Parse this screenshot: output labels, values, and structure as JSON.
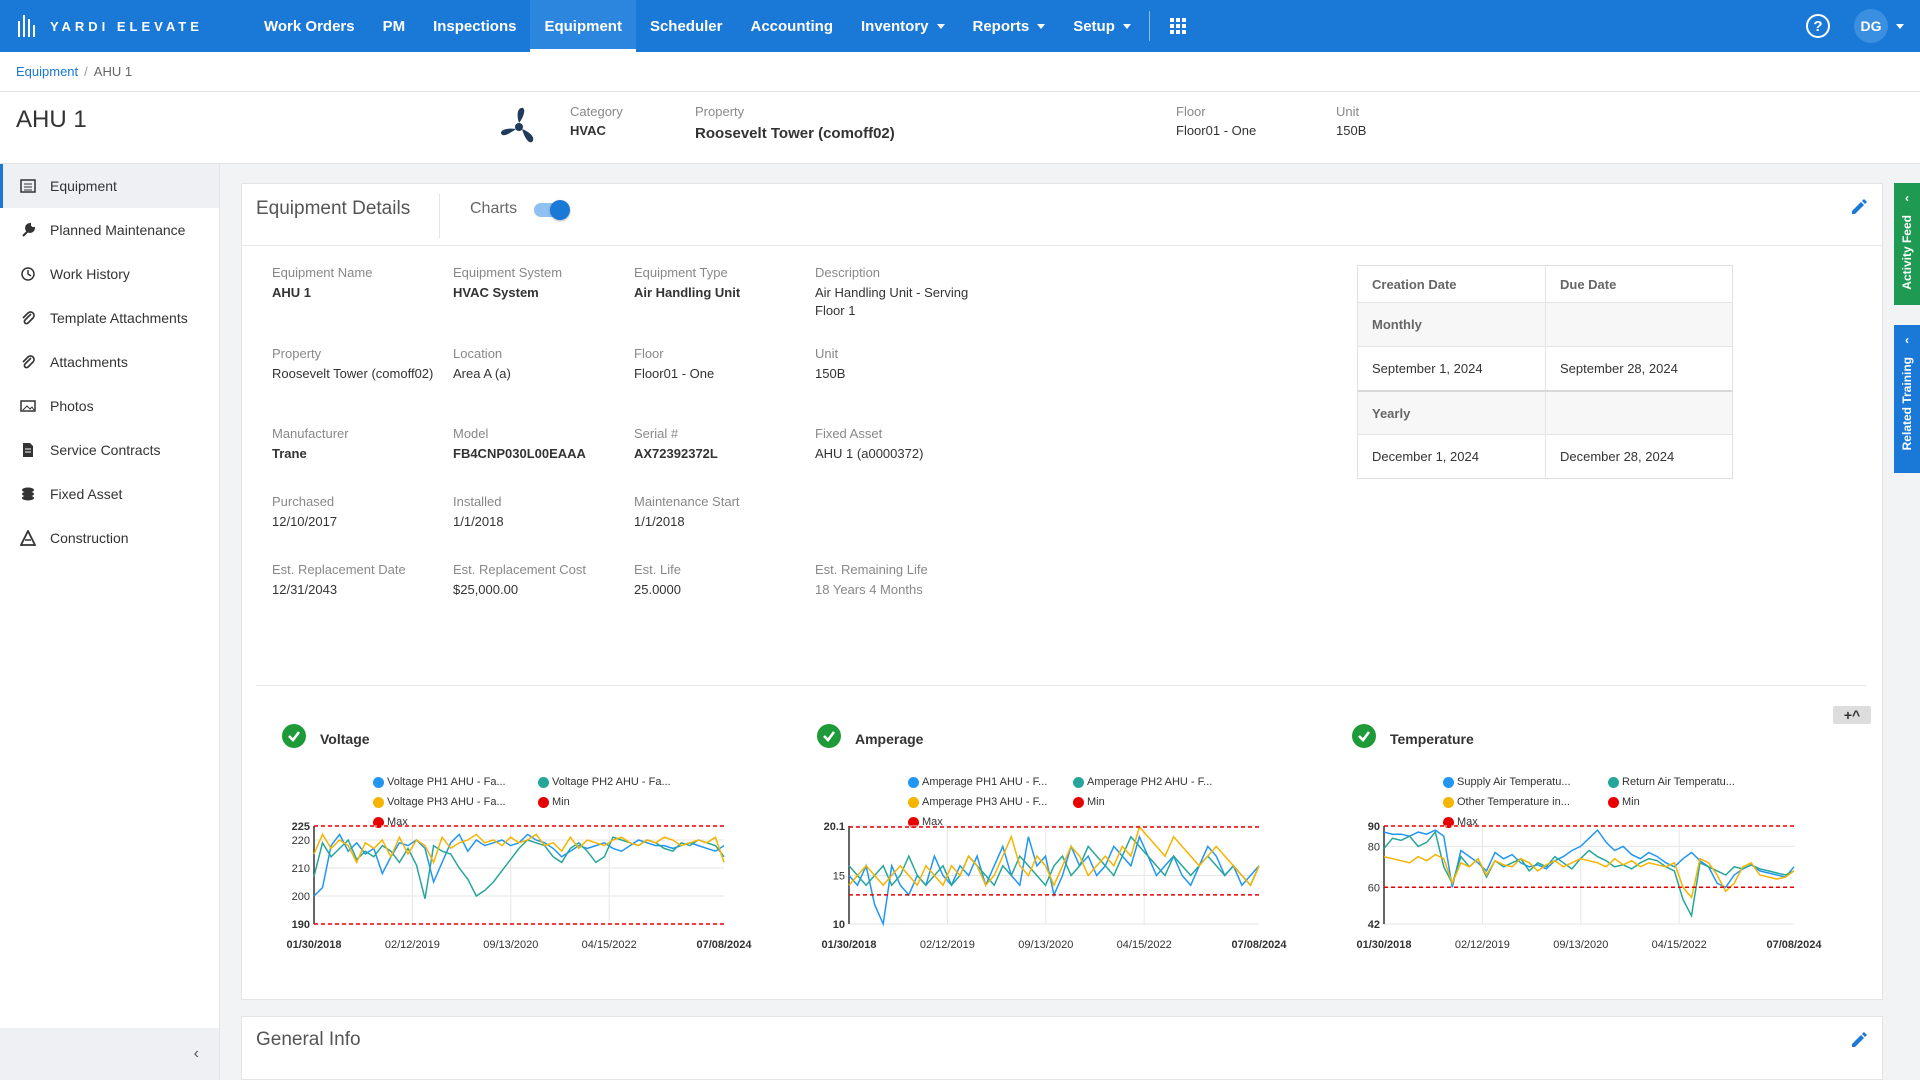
{
  "app": {
    "logo_text": "YARDI ELEVATE",
    "user_initials": "DG",
    "help_glyph": "?"
  },
  "nav": {
    "items": [
      {
        "label": "Work Orders",
        "dropdown": false
      },
      {
        "label": "PM",
        "dropdown": false
      },
      {
        "label": "Inspections",
        "dropdown": false
      },
      {
        "label": "Equipment",
        "dropdown": false,
        "active": true
      },
      {
        "label": "Scheduler",
        "dropdown": false
      },
      {
        "label": "Accounting",
        "dropdown": false
      },
      {
        "label": "Inventory",
        "dropdown": true
      },
      {
        "label": "Reports",
        "dropdown": true
      },
      {
        "label": "Setup",
        "dropdown": true
      }
    ]
  },
  "breadcrumb": {
    "root": "Equipment",
    "separator": "/",
    "current": "AHU 1"
  },
  "header": {
    "title": "AHU 1",
    "category_label": "Category",
    "category_value": "HVAC",
    "property_label": "Property",
    "property_value": "Roosevelt Tower (comoff02)",
    "floor_label": "Floor",
    "floor_value": "Floor01 - One",
    "unit_label": "Unit",
    "unit_value": "150B"
  },
  "sidebar": {
    "items": [
      {
        "label": "Equipment",
        "icon": "list-icon",
        "active": true
      },
      {
        "label": "Planned Maintenance",
        "icon": "wrench-icon"
      },
      {
        "label": "Work History",
        "icon": "history-icon"
      },
      {
        "label": "Template Attachments",
        "icon": "paperclip-icon"
      },
      {
        "label": "Attachments",
        "icon": "paperclip-icon"
      },
      {
        "label": "Photos",
        "icon": "image-icon"
      },
      {
        "label": "Service Contracts",
        "icon": "document-icon"
      },
      {
        "label": "Fixed Asset",
        "icon": "coins-icon"
      },
      {
        "label": "Construction",
        "icon": "cone-icon"
      }
    ],
    "collapse_glyph": "‹"
  },
  "details": {
    "title": "Equipment Details",
    "charts_label": "Charts",
    "charts_enabled": true,
    "fields": [
      {
        "label": "Equipment Name",
        "value": "AHU 1",
        "bold": true
      },
      {
        "label": "Equipment System",
        "value": "HVAC System",
        "bold": true
      },
      {
        "label": "Equipment Type",
        "value": "Air Handling Unit",
        "bold": true
      },
      {
        "label": "Description",
        "value": "Air Handling Unit - Serving Floor 1"
      },
      {
        "label": "Property",
        "value": "Roosevelt Tower (comoff02)"
      },
      {
        "label": "Location",
        "value": "Area A (a)"
      },
      {
        "label": "Floor",
        "value": "Floor01 - One"
      },
      {
        "label": "Unit",
        "value": "150B"
      },
      {
        "label": "Manufacturer",
        "value": "Trane",
        "bold": true
      },
      {
        "label": "Model",
        "value": "FB4CNP030L00EAAA",
        "bold": true
      },
      {
        "label": "Serial #",
        "value": "AX72392372L",
        "bold": true
      },
      {
        "label": "Fixed Asset",
        "value": "AHU 1 (a0000372)"
      },
      {
        "label": "Purchased",
        "value": "12/10/2017"
      },
      {
        "label": "Installed",
        "value": "1/1/2018"
      },
      {
        "label": "Maintenance Start",
        "value": "1/1/2018"
      },
      {
        "label": "Est. Replacement Date",
        "value": "12/31/2043"
      },
      {
        "label": "Est. Replacement Cost",
        "value": "$25,000.00"
      },
      {
        "label": "Est. Life",
        "value": "25.0000"
      },
      {
        "label": "Est. Remaining Life",
        "value": "18 Years 4 Months",
        "muted": true
      }
    ],
    "dates": {
      "headers": [
        "Creation Date",
        "Due Date"
      ],
      "groups": [
        {
          "name": "Monthly",
          "creation": "September 1, 2024",
          "due": "September 28, 2024"
        },
        {
          "name": "Yearly",
          "creation": "December 1, 2024",
          "due": "December 28, 2024"
        }
      ]
    },
    "expand_glyph": "+^"
  },
  "general_info": {
    "title": "General Info"
  },
  "right_tabs": {
    "activity": "Activity Feed",
    "training": "Related Training"
  },
  "colors": {
    "blue": "#2196f3",
    "green": "#26a69a",
    "yellow": "#f4b400",
    "red": "#e60000",
    "nav": "#1a78d6"
  },
  "chart_data": [
    {
      "type": "line",
      "title": "Voltage",
      "x_tick_labels": [
        "01/30/2018",
        "02/12/2019",
        "09/13/2020",
        "04/15/2022",
        "07/08/2024"
      ],
      "ylim": [
        190,
        225
      ],
      "y_tick_labels": [
        "225",
        "220",
        "210",
        "200",
        "190"
      ],
      "series": [
        {
          "name": "Voltage PH1 AHU - Fa...",
          "color": "#2196f3",
          "values": [
            200,
            203,
            218,
            222,
            216,
            219,
            215,
            217,
            208,
            214,
            219,
            218,
            220,
            217,
            205,
            212,
            219,
            222,
            216,
            220,
            218,
            219,
            220,
            218,
            219,
            222,
            220,
            219,
            217,
            214,
            216,
            218,
            217,
            218,
            219,
            217,
            216,
            218,
            220,
            219,
            218,
            218,
            217,
            218,
            219,
            218,
            217,
            216,
            218
          ]
        },
        {
          "name": "Voltage PH2 AHU - Fa...",
          "color": "#26a69a",
          "values": [
            207,
            219,
            214,
            217,
            220,
            213,
            216,
            214,
            218,
            216,
            212,
            217,
            211,
            199,
            218,
            216,
            215,
            210,
            206,
            200,
            202,
            205,
            209,
            213,
            217,
            220,
            219,
            218,
            214,
            212,
            217,
            219,
            216,
            212,
            214,
            221,
            220,
            219,
            218,
            220,
            219,
            217,
            216,
            219,
            218,
            220,
            219,
            218,
            214
          ]
        },
        {
          "name": "Voltage PH3 AHU - Fa...",
          "color": "#f4b400",
          "values": [
            215,
            222,
            217,
            220,
            218,
            212,
            219,
            217,
            220,
            214,
            221,
            215,
            220,
            218,
            212,
            221,
            217,
            219,
            220,
            222,
            219,
            220,
            218,
            221,
            219,
            220,
            222,
            218,
            219,
            216,
            221,
            217,
            220,
            219,
            218,
            220,
            221,
            219,
            218,
            220,
            219,
            221,
            220,
            218,
            219,
            220,
            219,
            221,
            212
          ]
        },
        {
          "name": "Min",
          "color": "#e60000",
          "constant": 190
        },
        {
          "name": "Max",
          "color": "#e60000",
          "constant": 225
        }
      ]
    },
    {
      "type": "line",
      "title": "Amperage",
      "x_tick_labels": [
        "01/30/2018",
        "02/12/2019",
        "09/13/2020",
        "04/15/2022",
        "07/08/2024"
      ],
      "ylim": [
        10,
        20.1
      ],
      "y_tick_labels": [
        "20.1",
        "15",
        "10"
      ],
      "series": [
        {
          "name": "Amperage PH1 AHU - F...",
          "color": "#2196f3",
          "values": [
            15,
            14,
            16,
            12,
            10,
            16,
            14,
            13,
            15,
            14,
            17,
            15,
            14,
            16,
            15,
            17,
            14,
            16,
            18,
            15,
            14,
            19,
            16,
            17,
            13,
            15,
            18,
            16,
            17,
            15,
            16,
            18,
            17,
            16,
            19,
            17,
            15,
            16,
            17,
            15,
            14,
            16,
            18,
            17,
            15,
            16,
            14,
            15,
            16
          ]
        },
        {
          "name": "Amperage PH2 AHU - F...",
          "color": "#26a69a",
          "values": [
            16,
            15,
            14,
            15,
            16,
            14,
            15,
            17,
            15,
            14,
            15,
            16,
            14,
            15,
            17,
            16,
            15,
            14,
            16,
            15,
            17,
            16,
            15,
            14,
            16,
            17,
            15,
            16,
            18,
            17,
            16,
            15,
            17,
            19,
            18,
            17,
            16,
            15,
            17,
            16,
            15,
            16,
            17,
            16,
            15,
            16,
            15,
            14,
            16
          ]
        },
        {
          "name": "Amperage PH3 AHU - F...",
          "color": "#f4b400",
          "values": [
            14,
            15,
            16,
            15,
            14,
            15,
            16,
            15,
            14,
            16,
            15,
            14,
            16,
            15,
            17,
            16,
            14,
            15,
            17,
            19,
            16,
            15,
            17,
            16,
            14,
            16,
            18,
            17,
            15,
            16,
            17,
            16,
            18,
            17,
            20,
            19,
            18,
            17,
            19,
            18,
            17,
            16,
            17,
            18,
            17,
            16,
            15,
            14,
            16
          ]
        },
        {
          "name": "Min",
          "color": "#e60000",
          "constant": 13
        },
        {
          "name": "Max",
          "color": "#e60000",
          "constant": 20
        }
      ]
    },
    {
      "type": "line",
      "title": "Temperature",
      "x_tick_labels": [
        "01/30/2018",
        "02/12/2019",
        "09/13/2020",
        "04/15/2022",
        "07/08/2024"
      ],
      "ylim": [
        42,
        90
      ],
      "y_tick_labels": [
        "90",
        "80",
        "60",
        "42"
      ],
      "series": [
        {
          "name": "Supply Air Temperatu...",
          "color": "#2196f3",
          "values": [
            87,
            86,
            86,
            85,
            87,
            86,
            88,
            85,
            60,
            78,
            75,
            72,
            68,
            77,
            74,
            76,
            72,
            70,
            71,
            69,
            73,
            75,
            78,
            80,
            84,
            88,
            82,
            78,
            80,
            76,
            74,
            77,
            75,
            72,
            70,
            74,
            77,
            73,
            70,
            62,
            60,
            66,
            69,
            71,
            68,
            67,
            66,
            65,
            70
          ]
        },
        {
          "name": "Return Air Temperatu...",
          "color": "#26a69a",
          "values": [
            79,
            84,
            83,
            85,
            80,
            82,
            87,
            70,
            62,
            75,
            70,
            74,
            65,
            73,
            70,
            72,
            74,
            68,
            72,
            70,
            75,
            72,
            69,
            74,
            78,
            75,
            73,
            70,
            71,
            69,
            72,
            74,
            73,
            70,
            68,
            54,
            46,
            72,
            70,
            68,
            66,
            70,
            69,
            71,
            69,
            68,
            67,
            66,
            68
          ]
        },
        {
          "name": "Other Temperature in...",
          "color": "#f4b400",
          "values": [
            75,
            74,
            73,
            72,
            75,
            73,
            76,
            74,
            62,
            72,
            70,
            74,
            66,
            73,
            71,
            70,
            74,
            72,
            68,
            71,
            73,
            70,
            72,
            74,
            73,
            72,
            70,
            74,
            71,
            73,
            70,
            72,
            71,
            70,
            72,
            60,
            55,
            74,
            72,
            66,
            58,
            62,
            70,
            72,
            66,
            65,
            64,
            65,
            68
          ]
        },
        {
          "name": "Min",
          "color": "#e60000",
          "constant": 60
        },
        {
          "name": "Max",
          "color": "#e60000",
          "constant": 90
        }
      ]
    }
  ]
}
